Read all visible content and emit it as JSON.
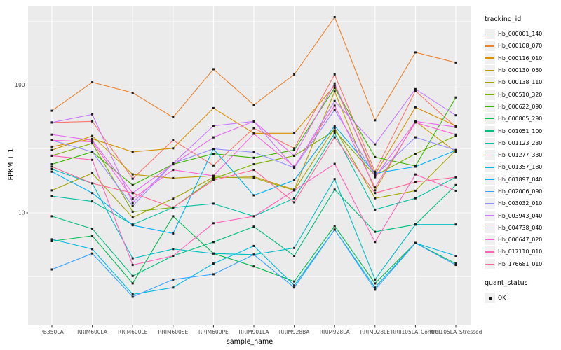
{
  "chart_data": {
    "type": "line",
    "title": "",
    "xlabel": "sample_name",
    "ylabel": "FPKM + 1",
    "y_scale": "log10",
    "grid": true,
    "legend_position": "right",
    "y_tick_labels": [
      "10",
      "100"
    ],
    "y_tick_values": [
      10,
      100
    ],
    "y_minor_values": [
      3.162,
      31.62,
      316.2
    ],
    "ylim": [
      1.3,
      420
    ],
    "categories": [
      "PB350LA",
      "RRIM600LA",
      "RRIM600LE",
      "RRIM600SE",
      "RRIM600PE",
      "RRIM901LA",
      "RRIM928BA",
      "RRIM928LA",
      "RRIM928LE",
      "RRII105LA_Control",
      "RRII105LA_Stressed"
    ],
    "legend": {
      "title": "tracking_id"
    },
    "legend2": {
      "title": "quant_status",
      "items": [
        {
          "label": "OK",
          "glyph": "black-square"
        }
      ]
    },
    "colors": {
      "panel_bg": "#EBEBEB",
      "grid": "#FFFFFF",
      "point": "#1A1A1A",
      "tick_text": "#4D4D4D"
    },
    "series": [
      {
        "name": "Hb_000001_140",
        "color": "#F8766D",
        "values": [
          51,
          52,
          18.5,
          37,
          23.5,
          46,
          32,
          121,
          21,
          90,
          47
        ]
      },
      {
        "name": "Hb_000108_070",
        "color": "#EA8331",
        "values": [
          63,
          105,
          87,
          56,
          133,
          70,
          121,
          340,
          53,
          180,
          150
        ]
      },
      {
        "name": "Hb_000116_010",
        "color": "#D89000",
        "values": [
          33,
          38,
          30,
          32,
          66,
          42,
          42,
          99,
          20,
          67,
          48
        ]
      },
      {
        "name": "Hb_000130_050",
        "color": "#C09B00",
        "values": [
          31,
          40,
          20,
          18.7,
          19.5,
          19.2,
          15.2,
          89,
          15,
          52,
          30
        ]
      },
      {
        "name": "Hb_000138_110",
        "color": "#A3A500",
        "values": [
          15,
          20.4,
          9.2,
          12.9,
          19,
          18.8,
          15,
          46,
          13,
          14.9,
          31
        ]
      },
      {
        "name": "Hb_000510_320",
        "color": "#7CAE00",
        "values": [
          28,
          35,
          10.2,
          11,
          18.5,
          24,
          28,
          44,
          19.6,
          29,
          40
        ]
      },
      {
        "name": "Hb_000622_090",
        "color": "#39B600",
        "values": [
          24,
          30,
          16.5,
          24,
          29,
          27,
          31,
          95,
          27.3,
          23.3,
          80
        ]
      },
      {
        "name": "Hb_000805_290",
        "color": "#00BB4E",
        "values": [
          6,
          6.6,
          2.8,
          9.4,
          4.8,
          3.8,
          2.9,
          7.9,
          2.8,
          5.8,
          4
        ]
      },
      {
        "name": "Hb_001051_100",
        "color": "#00BF7D",
        "values": [
          9.4,
          7.5,
          3.2,
          4.6,
          5.9,
          7.8,
          4.6,
          15.2,
          7.1,
          8.1,
          16.5
        ]
      },
      {
        "name": "Hb_001123_230",
        "color": "#00C1A3",
        "values": [
          13.5,
          12.3,
          8.1,
          11,
          11.8,
          9.4,
          13,
          42,
          10.6,
          13,
          19
        ]
      },
      {
        "name": "Hb_001277_330",
        "color": "#00BFC4",
        "values": [
          22,
          17,
          4.4,
          5.2,
          4.8,
          4.7,
          5.3,
          18.4,
          3,
          8.1,
          8.1
        ]
      },
      {
        "name": "Hb_001357_180",
        "color": "#00BAE0",
        "values": [
          6.2,
          5.2,
          2.3,
          2.6,
          4,
          5.5,
          2.7,
          7.4,
          2.6,
          5.8,
          4.6
        ]
      },
      {
        "name": "Hb_001897_040",
        "color": "#00B0F6",
        "values": [
          21,
          14.3,
          8,
          6.9,
          31.7,
          13.7,
          18,
          48,
          20.4,
          23,
          30.8
        ]
      },
      {
        "name": "Hb_002006_090",
        "color": "#35A2FF",
        "values": [
          3.6,
          4.8,
          2.2,
          3,
          3.3,
          4.7,
          2.6,
          7.4,
          2.5,
          5.8,
          3.9
        ]
      },
      {
        "name": "Hb_003032_010",
        "color": "#9590FF",
        "values": [
          37,
          30,
          11.3,
          24.4,
          31.7,
          29.8,
          22.6,
          64,
          19.6,
          39,
          31
        ]
      },
      {
        "name": "Hb_003943_040",
        "color": "#C77CFF",
        "values": [
          51,
          59,
          12,
          24.4,
          48,
          52,
          22.6,
          75,
          34.4,
          93,
          58
        ]
      },
      {
        "name": "Hb_004738_040",
        "color": "#E76BF3",
        "values": [
          41,
          37,
          14.3,
          24,
          39,
          52,
          28,
          103,
          19,
          52,
          47
        ]
      },
      {
        "name": "Hb_006647_020",
        "color": "#FA62DB",
        "values": [
          37,
          36,
          12.9,
          21.7,
          19.5,
          41.6,
          23,
          69,
          15.8,
          51,
          41
        ]
      },
      {
        "name": "Hb_017110_010",
        "color": "#FF62BC",
        "values": [
          28,
          26,
          3.9,
          4.6,
          8.3,
          9.4,
          15,
          24.2,
          5.9,
          20,
          14.9
        ]
      },
      {
        "name": "Hb_176681_010",
        "color": "#FF6A98",
        "values": [
          23,
          17,
          14.3,
          11,
          18,
          21.7,
          12.1,
          39,
          14.3,
          17.4,
          19
        ]
      }
    ]
  }
}
